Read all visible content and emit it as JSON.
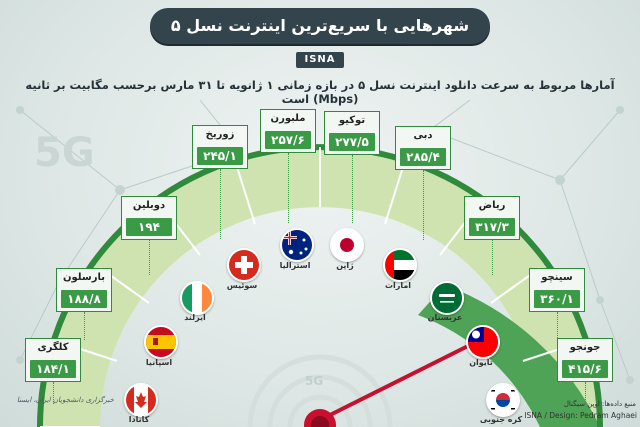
{
  "title": "شهرهایی با سریع‌ترین اینترنت نسل ۵",
  "agency_tag": "ISNA",
  "subtitle": "آمارها مربوط به سرعت دانلود اینترنت نسل ۵ در بازه زمانی ۱ ژانویه تا ۳۱ مارس برحسب مگابیت بر ثانیه (Mbps) است",
  "deco_5g": "5G",
  "cities": [
    {
      "name": "کلگری",
      "value": "۱۸۴/۱",
      "country": "کانادا",
      "flag": "canada-flag-icon"
    },
    {
      "name": "بارسلون",
      "value": "۱۸۸/۸",
      "country": "اسپانیا",
      "flag": "spain-flag-icon"
    },
    {
      "name": "دوبلین",
      "value": "۱۹۴",
      "country": "ایرلند",
      "flag": "ireland-flag-icon"
    },
    {
      "name": "زوریخ",
      "value": "۲۴۵/۱",
      "country": "سوئیس",
      "flag": "switzerland-flag-icon"
    },
    {
      "name": "ملبورن",
      "value": "۲۵۷/۶",
      "country": "استرالیا",
      "flag": "australia-flag-icon"
    },
    {
      "name": "توکیو",
      "value": "۲۷۷/۵",
      "country": "ژاپن",
      "flag": "japan-flag-icon"
    },
    {
      "name": "دبی",
      "value": "۲۸۵/۴",
      "country": "امارات",
      "flag": "uae-flag-icon"
    },
    {
      "name": "ریاض",
      "value": "۳۱۷/۳",
      "country": "عربستان",
      "flag": "saudi-flag-icon"
    },
    {
      "name": "سینچو",
      "value": "۳۶۰/۱",
      "country": "تایوان",
      "flag": "taiwan-flag-icon"
    },
    {
      "name": "جونجو",
      "value": "۴۱۵/۶",
      "country": "کره جنوبی",
      "flag": "south-korea-flag-icon"
    }
  ],
  "source": "منبع داده‌ها: اوپن سیگنال",
  "credit": "ISNA / Design: Pedram Aghaei",
  "agency": "خبرگزاری دانشجویان ایران، ایسنا",
  "colors": {
    "dark": "#33444c",
    "accent": "#3a9a46",
    "gauge_light": "#cfe3b0",
    "gauge_dark": "#2f8a3c",
    "needle": "#c8102e"
  }
}
